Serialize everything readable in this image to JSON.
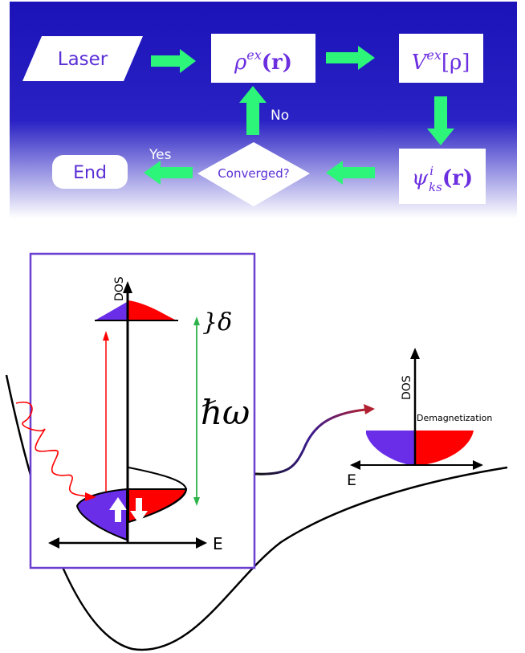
{
  "flowchart": {
    "start": "Laser",
    "density": "ρ",
    "density_sup": "ex",
    "density_arg": "(r)",
    "potential": "V",
    "potential_sup": "ex",
    "potential_arg": "[ρ]",
    "wavefunction": "ψ",
    "wavefunction_sup": "i",
    "wavefunction_sub": "ks",
    "wavefunction_arg": "(r)",
    "decision": "Converged?",
    "no_label": "No",
    "yes_label": "Yes",
    "end": "End",
    "colors": {
      "panel_top": "#1b12b8",
      "panel_bottom": "#ffffff",
      "arrow": "#2cf57a",
      "text": "#6b2fe0"
    }
  },
  "schematic": {
    "dos_label": "DOS",
    "energy_label": "E",
    "delta_label": "}δ",
    "hbar_omega_label": "ℏω",
    "right_dos_label": "DOS",
    "right_energy_label": "E",
    "demag_label": "Demagnetization",
    "spin_up_icon": "up-arrow",
    "spin_down_icon": "down-arrow",
    "colors": {
      "spin_up": "#6a2ee8",
      "spin_down": "#ff0000",
      "frame": "#6b3fd0",
      "hbar_arrow": "#2db34a",
      "excitation_arrow": "#ff0000"
    }
  }
}
